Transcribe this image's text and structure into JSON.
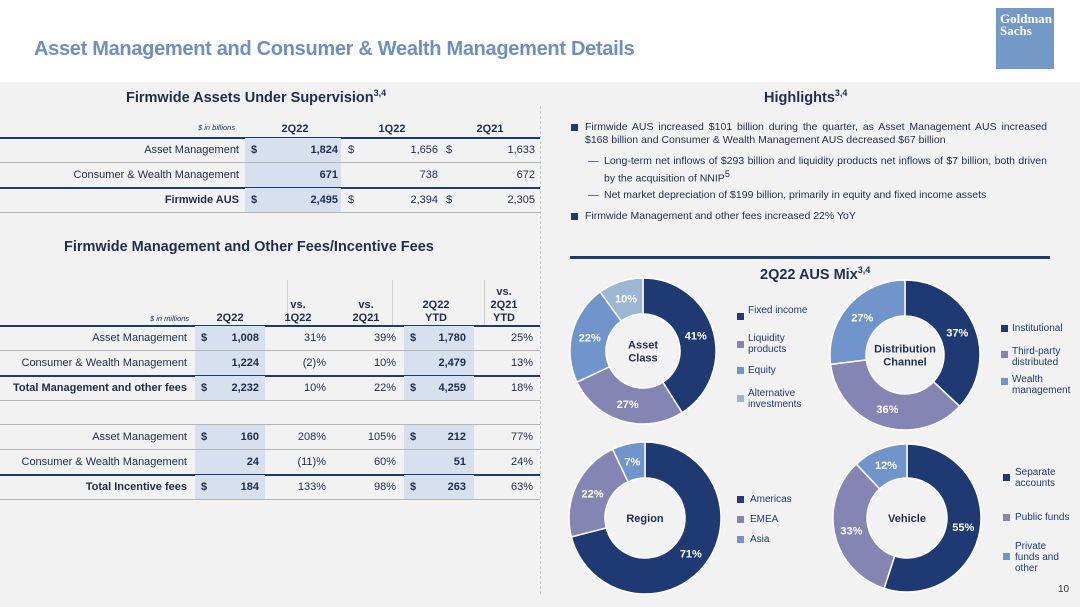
{
  "header": {
    "title": "Asset Management and Consumer & Wealth Management Details",
    "logo_line1": "Goldman",
    "logo_line2": "Sachs"
  },
  "aus_table": {
    "title": "Firmwide Assets Under Supervision",
    "title_sup": "3,4",
    "units": "$ in billions",
    "columns": [
      "2Q22",
      "1Q22",
      "2Q21"
    ],
    "rows": [
      {
        "label": "Asset Management",
        "dollar": true,
        "values": [
          "1,824",
          "1,656",
          "1,633"
        ]
      },
      {
        "label": "Consumer & Wealth Management",
        "dollar": false,
        "values": [
          "671",
          "738",
          "672"
        ]
      },
      {
        "label": "Firmwide AUS",
        "dollar": true,
        "values": [
          "2,495",
          "2,394",
          "2,305"
        ]
      }
    ]
  },
  "fees_table": {
    "title": "Firmwide Management and Other Fees/Incentive Fees",
    "units": "$ in millions",
    "columns": [
      "2Q22",
      "vs.\n1Q22",
      "vs.\n2Q21",
      "2Q22\nYTD",
      "vs.\n2Q21\nYTD"
    ],
    "rows": [
      {
        "label": "Asset Management",
        "values": [
          "1,008",
          "31%",
          "39%",
          "1,780",
          "25%"
        ]
      },
      {
        "label": "Consumer & Wealth Management",
        "values": [
          "1,224",
          "(2)%",
          "10%",
          "2,479",
          "13%"
        ]
      },
      {
        "label": "Total Management and other fees",
        "values": [
          "2,232",
          "10%",
          "22%",
          "4,259",
          "18%"
        ]
      },
      {
        "label": "Asset Management",
        "values": [
          "160",
          "208%",
          "105%",
          "212",
          "77%"
        ]
      },
      {
        "label": "Consumer & Wealth Management",
        "values": [
          "24",
          "(11)%",
          "60%",
          "51",
          "24%"
        ]
      },
      {
        "label": "Total Incentive fees",
        "values": [
          "184",
          "133%",
          "98%",
          "263",
          "63%"
        ]
      }
    ]
  },
  "highlights": {
    "title": "Highlights",
    "title_sup": "3,4",
    "b1": "Firmwide AUS increased $101 billion during the quarter, as Asset Management AUS increased $168 billion and Consumer & Wealth Management AUS decreased $67 billion",
    "s1_main": "Long-term net inflows of $293 billion and liquidity products net inflows of $7 billion, both driven by the acquisition of NNIP",
    "s1_sup": "5",
    "s2": "Net market depreciation of $199 billion, primarily in equity and fixed income assets",
    "b2": "Firmwide Management and other fees increased 22% YoY"
  },
  "mix_title": "2Q22 AUS Mix",
  "mix_sup": "3,4",
  "dollar_sign": "$",
  "page_number": "10",
  "colors": {
    "navy": "#1f3a73",
    "slate": "#8585b3",
    "blue": "#6f95cc",
    "light": "#9cb7d3"
  },
  "chart_data": [
    {
      "type": "pie",
      "center_label": "Asset Class",
      "categories": [
        "Fixed income",
        "Liquidity products",
        "Equity",
        "Alternative investments"
      ],
      "values": [
        41,
        27,
        22,
        10
      ],
      "colors": [
        "#1f3a73",
        "#8585b3",
        "#6f95cc",
        "#9cb7d3"
      ],
      "labels": [
        "41%",
        "27%",
        "22%",
        "10%"
      ]
    },
    {
      "type": "pie",
      "center_label": "Distribution Channel",
      "categories": [
        "Institutional",
        "Third-party distributed",
        "Wealth management"
      ],
      "values": [
        37,
        36,
        27
      ],
      "colors": [
        "#1f3a73",
        "#8585b3",
        "#6f95cc"
      ],
      "labels": [
        "37%",
        "36%",
        "27%"
      ]
    },
    {
      "type": "pie",
      "center_label": "Region",
      "categories": [
        "Americas",
        "EMEA",
        "Asia"
      ],
      "values": [
        71,
        22,
        7
      ],
      "colors": [
        "#1f3a73",
        "#8585b3",
        "#6f95cc"
      ],
      "labels": [
        "71%",
        "22%",
        "7%"
      ]
    },
    {
      "type": "pie",
      "center_label": "Vehicle",
      "categories": [
        "Separate accounts",
        "Public funds",
        "Private funds and other"
      ],
      "values": [
        55,
        33,
        12
      ],
      "colors": [
        "#1f3a73",
        "#8585b3",
        "#6f95cc"
      ],
      "labels": [
        "55%",
        "33%",
        "12%"
      ]
    }
  ]
}
